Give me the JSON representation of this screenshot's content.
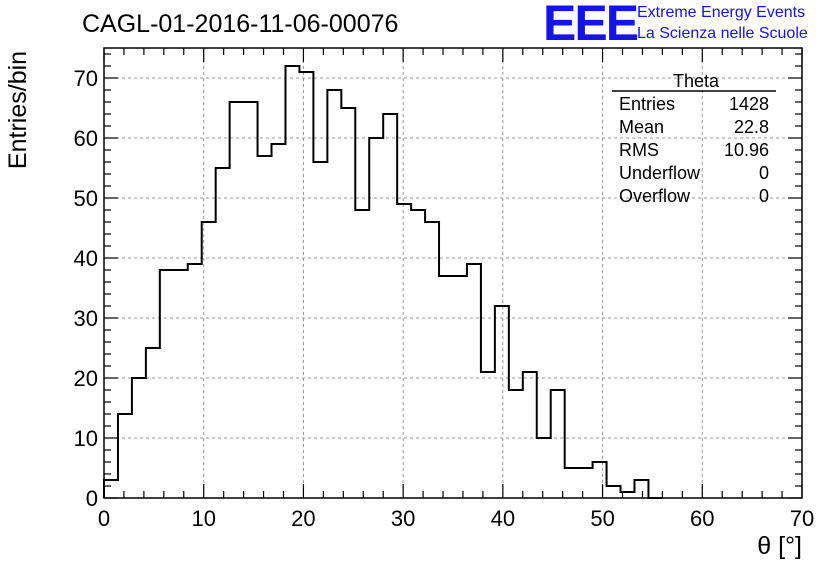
{
  "title": "CAGL-01-2016-11-06-00076",
  "logo": {
    "mark": "EEE",
    "line1": "Extreme Energy Events",
    "line2": "La Scienza nelle Scuole",
    "color": "#1414e6"
  },
  "chart_data": {
    "type": "histogram",
    "xlabel": "θ [°]",
    "ylabel": "Entries/bin",
    "xlim": [
      0,
      70
    ],
    "ylim": [
      0,
      75
    ],
    "xticks": [
      0,
      10,
      20,
      30,
      40,
      50,
      60,
      70
    ],
    "yticks": [
      0,
      10,
      20,
      30,
      40,
      50,
      60,
      70
    ],
    "grid": true,
    "bin_width": 1.4,
    "x_start": 0,
    "values": [
      3,
      14,
      20,
      25,
      38,
      38,
      39,
      46,
      55,
      66,
      66,
      57,
      59,
      72,
      71,
      56,
      68,
      65,
      48,
      60,
      64,
      49,
      48,
      46,
      37,
      37,
      39,
      21,
      32,
      18,
      21,
      10,
      18,
      5,
      5,
      6,
      2,
      1,
      3,
      0
    ],
    "line_color": "#000000"
  },
  "stats": {
    "title": "Theta",
    "rows": [
      {
        "label": "Entries",
        "value": "1428"
      },
      {
        "label": "Mean",
        "value": "22.8"
      },
      {
        "label": "RMS",
        "value": "10.96"
      },
      {
        "label": "Underflow",
        "value": "0"
      },
      {
        "label": "Overflow",
        "value": "0"
      }
    ]
  }
}
